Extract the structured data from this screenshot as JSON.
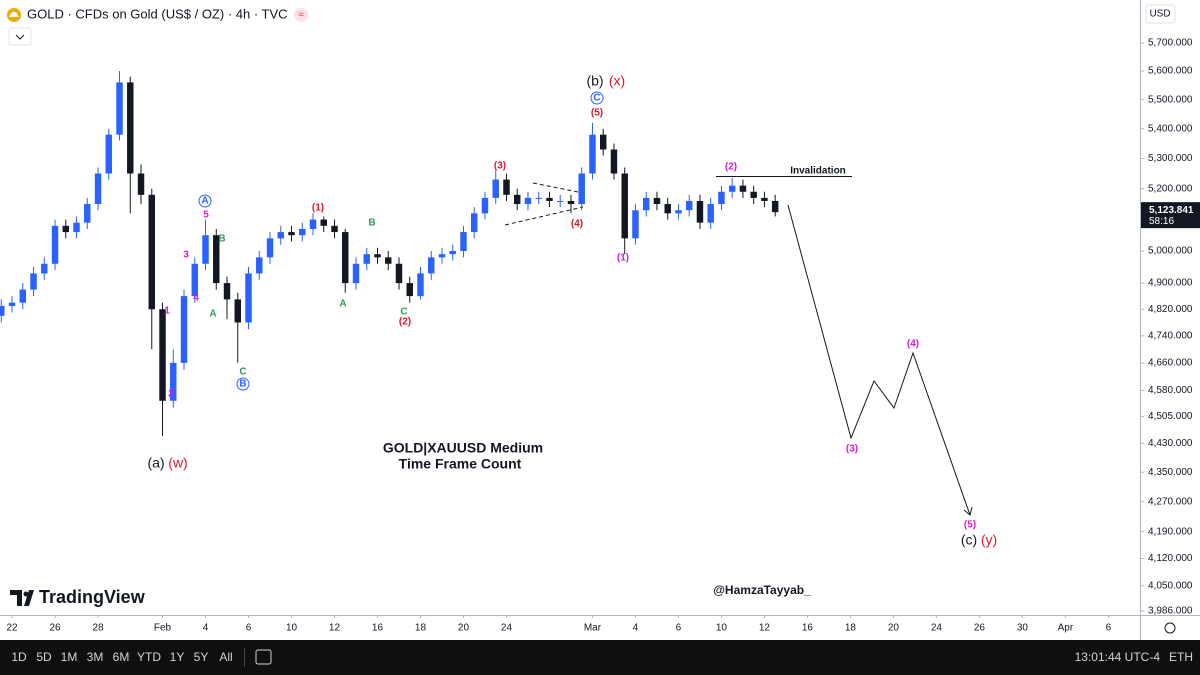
{
  "header": {
    "symbol_title": "GOLD · CFDs on Gold (US$ / OZ) · 4h · TVC",
    "currency": "USD"
  },
  "toolbar": {
    "intervals": [
      "1D",
      "5D",
      "1M",
      "3M",
      "6M",
      "YTD",
      "1Y",
      "5Y",
      "All"
    ],
    "clock": "13:01:44 UTC-4",
    "session": "ETH"
  },
  "branding": {
    "name": "TradingView",
    "author": "@HamzaTayyab_",
    "caption": [
      "GOLD|XAUUSD Medium",
      "Time Frame Count"
    ]
  },
  "chart_data": {
    "type": "candlestick",
    "log_scale": true,
    "grid": false,
    "up_color": "#2962ff",
    "down_color": "#131722",
    "x": [
      -0.5,
      0,
      0.5,
      1,
      1.5,
      2,
      2.5,
      3,
      3.5,
      4,
      4.5,
      5,
      5.5,
      6,
      6.5,
      7,
      7.5,
      8,
      8.5,
      9,
      9.5,
      10,
      10.5,
      11,
      11.5,
      12,
      12.5,
      13,
      13.5,
      14,
      14.5,
      15,
      15.5,
      16,
      16.5,
      17,
      17.5,
      18,
      18.5,
      19,
      19.5,
      20,
      20.5,
      21,
      21.5,
      22,
      22.5,
      23,
      23.5,
      24,
      24.5,
      25,
      25.5,
      26,
      26.5,
      27,
      27.5,
      28,
      28.5,
      29,
      29.5,
      30,
      30.5,
      31,
      31.5,
      32,
      32.5,
      33,
      33.5,
      34,
      34.5,
      35,
      35.5
    ],
    "open": [
      4800,
      4830,
      4840,
      4880,
      4930,
      4960,
      5080,
      5060,
      5090,
      5150,
      5250,
      5380,
      5560,
      5250,
      5180,
      4820,
      4550,
      4660,
      4860,
      4960,
      5050,
      4900,
      4850,
      4780,
      4930,
      4980,
      5040,
      5060,
      5050,
      5070,
      5100,
      5080,
      5060,
      4900,
      4960,
      4990,
      4980,
      4960,
      4900,
      4860,
      4930,
      4980,
      4990,
      5000,
      5060,
      5120,
      5170,
      5230,
      5180,
      5150,
      5170,
      5170,
      5160,
      5160,
      5150,
      5250,
      5380,
      5330,
      5250,
      5040,
      5130,
      5170,
      5150,
      5120,
      5130,
      5160,
      5090,
      5150,
      5190,
      5210,
      5190,
      5170,
      5160
    ],
    "high": [
      4850,
      4860,
      4900,
      4950,
      4980,
      5100,
      5100,
      5110,
      5170,
      5270,
      5400,
      5600,
      5580,
      5280,
      5200,
      4840,
      4700,
      4880,
      4980,
      5100,
      5070,
      4920,
      4870,
      4950,
      5000,
      5060,
      5080,
      5080,
      5090,
      5120,
      5110,
      5100,
      5070,
      4980,
      5010,
      5010,
      5000,
      4980,
      4920,
      4950,
      5000,
      5010,
      5020,
      5080,
      5140,
      5190,
      5260,
      5250,
      5200,
      5190,
      5190,
      5190,
      5180,
      5180,
      5270,
      5420,
      5400,
      5350,
      5270,
      5150,
      5190,
      5190,
      5170,
      5150,
      5180,
      5180,
      5170,
      5210,
      5235,
      5230,
      5210,
      5190,
      5180
    ],
    "low": [
      4780,
      4810,
      4820,
      4860,
      4910,
      4940,
      5040,
      5040,
      5070,
      5130,
      5230,
      5360,
      5120,
      5150,
      4700,
      4450,
      4530,
      4640,
      4840,
      4940,
      4880,
      4790,
      4660,
      4760,
      4910,
      4960,
      5020,
      5030,
      5030,
      5050,
      5060,
      5040,
      4870,
      4880,
      4940,
      4960,
      4940,
      4880,
      4840,
      4850,
      4910,
      4960,
      4970,
      4980,
      5040,
      5100,
      5150,
      5160,
      5130,
      5130,
      5150,
      5140,
      5140,
      5120,
      5130,
      5230,
      5310,
      5230,
      4990,
      5020,
      5110,
      5130,
      5100,
      5100,
      5110,
      5070,
      5070,
      5130,
      5170,
      5170,
      5150,
      5140,
      5110
    ],
    "close": [
      4830,
      4840,
      4880,
      4930,
      4960,
      5080,
      5060,
      5090,
      5150,
      5250,
      5380,
      5560,
      5250,
      5180,
      4820,
      4550,
      4660,
      4860,
      4960,
      5050,
      4900,
      4850,
      4780,
      4930,
      4980,
      5040,
      5060,
      5050,
      5070,
      5100,
      5080,
      5060,
      4900,
      4960,
      4990,
      4980,
      4960,
      4900,
      4860,
      4930,
      4980,
      4990,
      5000,
      5060,
      5120,
      5170,
      5230,
      5180,
      5150,
      5170,
      5170,
      5160,
      5160,
      5150,
      5250,
      5380,
      5330,
      5250,
      5040,
      5130,
      5170,
      5150,
      5120,
      5130,
      5160,
      5090,
      5150,
      5190,
      5210,
      5190,
      5170,
      5160,
      5123.841
    ],
    "last_price": {
      "value": 5123.841,
      "label": "5,123.841"
    },
    "countdown": "58:16",
    "xlim": [
      -0.56,
      52.47
    ],
    "xticks": [
      {
        "value": 0,
        "label": "22"
      },
      {
        "value": 2,
        "label": "26"
      },
      {
        "value": 4,
        "label": "28"
      },
      {
        "value": 7,
        "label": "Feb"
      },
      {
        "value": 9,
        "label": "4"
      },
      {
        "value": 11,
        "label": "6"
      },
      {
        "value": 13,
        "label": "10"
      },
      {
        "value": 15,
        "label": "12"
      },
      {
        "value": 17,
        "label": "16"
      },
      {
        "value": 19,
        "label": "18"
      },
      {
        "value": 21,
        "label": "20"
      },
      {
        "value": 23,
        "label": "24"
      },
      {
        "value": 27,
        "label": "Mar"
      },
      {
        "value": 29,
        "label": "4"
      },
      {
        "value": 31,
        "label": "6"
      },
      {
        "value": 33,
        "label": "10"
      },
      {
        "value": 35,
        "label": "12"
      },
      {
        "value": 37,
        "label": "16"
      },
      {
        "value": 39,
        "label": "18"
      },
      {
        "value": 41,
        "label": "20"
      },
      {
        "value": 43,
        "label": "24"
      },
      {
        "value": 45,
        "label": "26"
      },
      {
        "value": 47,
        "label": "30"
      },
      {
        "value": 49,
        "label": "Apr"
      },
      {
        "value": 51,
        "label": "6"
      }
    ],
    "ylim": [
      3976,
      5856
    ],
    "yticks": [
      {
        "value": 5700,
        "label": "5,700.000"
      },
      {
        "value": 5600,
        "label": "5,600.000"
      },
      {
        "value": 5500,
        "label": "5,500.000"
      },
      {
        "value": 5400,
        "label": "5,400.000"
      },
      {
        "value": 5300,
        "label": "5,300.000"
      },
      {
        "value": 5200,
        "label": "5,200.000"
      },
      {
        "value": 5000,
        "label": "5,000.000"
      },
      {
        "value": 4900,
        "label": "4,900.000"
      },
      {
        "value": 4820,
        "label": "4,820.000"
      },
      {
        "value": 4740,
        "label": "4,740.000"
      },
      {
        "value": 4660,
        "label": "4,660.000"
      },
      {
        "value": 4580,
        "label": "4,580.000"
      },
      {
        "value": 4505,
        "label": "4,505.000"
      },
      {
        "value": 4430,
        "label": "4,430.000"
      },
      {
        "value": 4350,
        "label": "4,350.000"
      },
      {
        "value": 4270,
        "label": "4,270.000"
      },
      {
        "value": 4190,
        "label": "4,190.000"
      },
      {
        "value": 4120,
        "label": "4,120.000"
      },
      {
        "value": 4050,
        "label": "4,050.000"
      },
      {
        "value": 3986,
        "label": "3,986.000"
      }
    ],
    "annotations": [
      {
        "text": "(a)",
        "color": "#131722"
      },
      {
        "text": "(w)",
        "color": "#e0162b"
      },
      {
        "text": "(b)",
        "color": "#131722"
      },
      {
        "text": "(x)",
        "color": "#e0162b"
      },
      {
        "text": "C",
        "color": "#2962ff",
        "circled": true
      },
      {
        "text": "(5)",
        "color": "#e0162b"
      },
      {
        "text": "(3)",
        "color": "#e0162b"
      },
      {
        "text": "(4)",
        "color": "#e0162b"
      },
      {
        "text": "(1)",
        "color": "#e0162b"
      },
      {
        "text": "(2)",
        "color": "#e0162b"
      },
      {
        "text": "(1)",
        "color": "#d81bd8"
      },
      {
        "text": "(2)",
        "color": "#d81bd8"
      },
      {
        "text": "A",
        "color": "#2962ff",
        "circled": true
      },
      {
        "text": "5",
        "color": "#d81bd8"
      },
      {
        "text": "3",
        "color": "#d81bd8"
      },
      {
        "text": "4",
        "color": "#d81bd8"
      },
      {
        "text": "1",
        "color": "#d81bd8"
      },
      {
        "text": "2",
        "color": "#d81bd8"
      },
      {
        "text": "B",
        "color": "#2e9e4f"
      },
      {
        "text": "A",
        "color": "#2e9e4f"
      },
      {
        "text": "C",
        "color": "#2e9e4f"
      },
      {
        "text": "B",
        "color": "#2962ff",
        "circled": true
      },
      {
        "text": "B",
        "color": "#2e9e4f"
      },
      {
        "text": "A",
        "color": "#2e9e4f"
      },
      {
        "text": "C",
        "color": "#2e9e4f"
      },
      {
        "text": "(3)",
        "color": "#d81bd8"
      },
      {
        "text": "(4)",
        "color": "#d81bd8"
      },
      {
        "text": "(5)",
        "color": "#d81bd8"
      },
      {
        "text": "(c)",
        "color": "#131722"
      },
      {
        "text": "(y)",
        "color": "#e0162b"
      },
      {
        "text": "Invalidation",
        "color": "#131722"
      }
    ]
  }
}
